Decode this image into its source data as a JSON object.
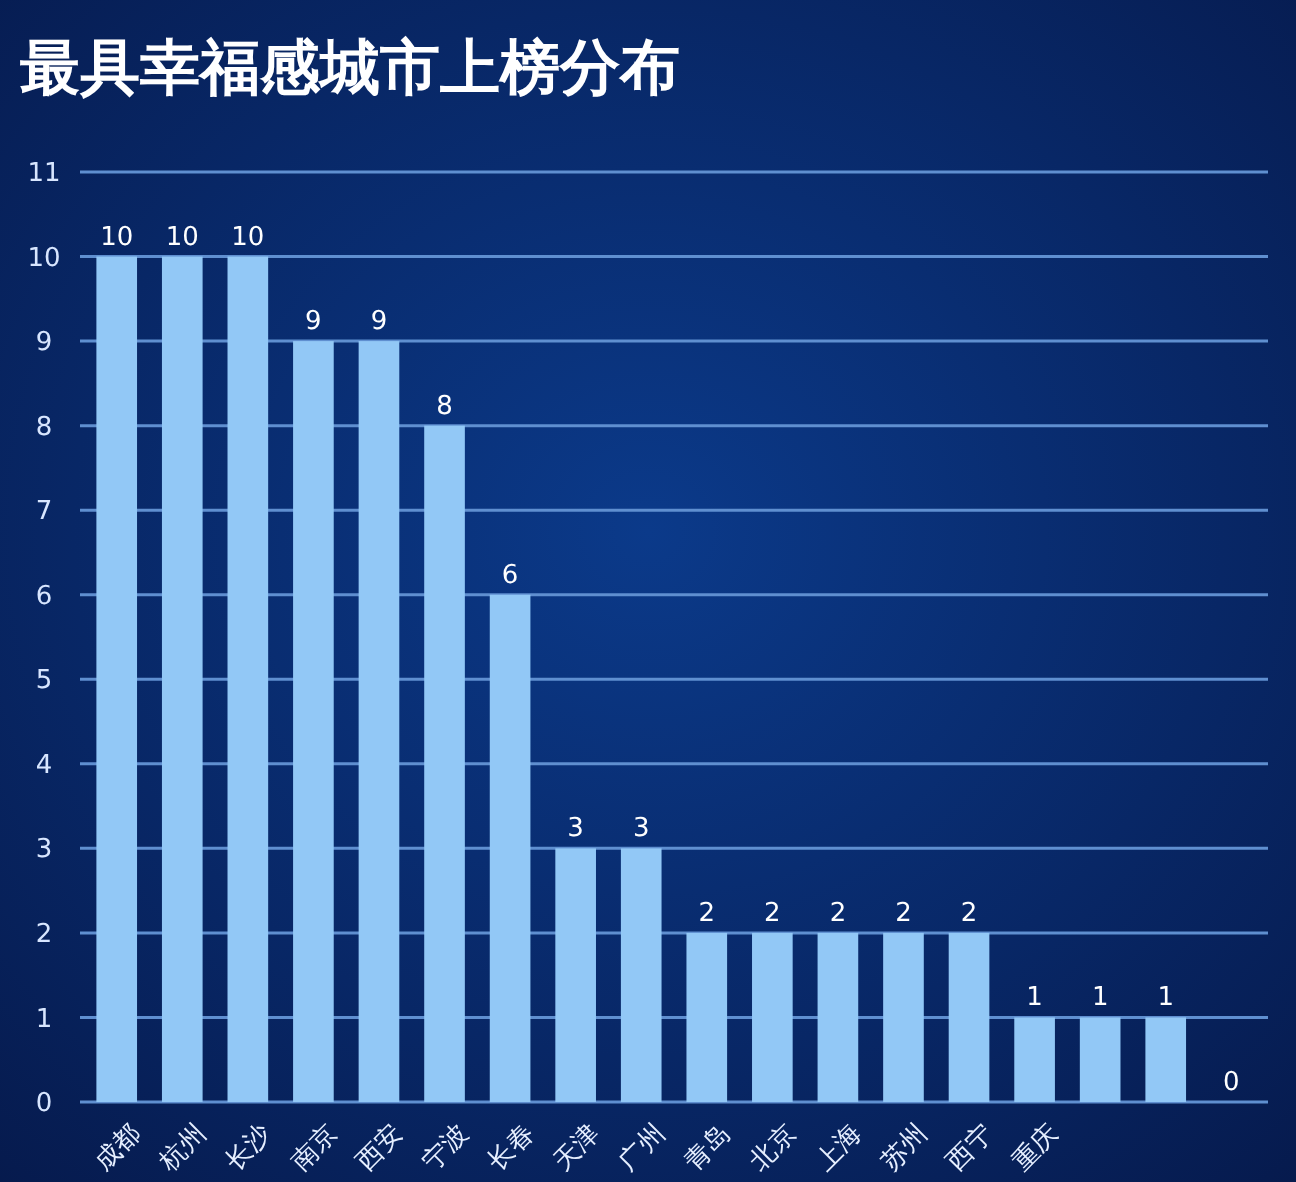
{
  "chart_data": {
    "type": "bar",
    "title": "最具幸福感城市上榜分布",
    "categories": [
      "成都",
      "杭州",
      "长沙",
      "南京",
      "西安",
      "宁波",
      "长春",
      "天津",
      "广州",
      "青岛",
      "北京",
      "上海",
      "苏州",
      "西宁",
      "重庆",
      null,
      null,
      null
    ],
    "values": [
      10,
      10,
      10,
      9,
      9,
      8,
      6,
      3,
      3,
      2,
      2,
      2,
      2,
      2,
      1,
      1,
      1,
      0
    ],
    "color": "#92c8f6",
    "ylim": [
      0,
      11
    ],
    "yticks": [
      0,
      1,
      2,
      3,
      4,
      5,
      6,
      7,
      8,
      9,
      10,
      11
    ],
    "grid": "y",
    "data_labels": true
  }
}
